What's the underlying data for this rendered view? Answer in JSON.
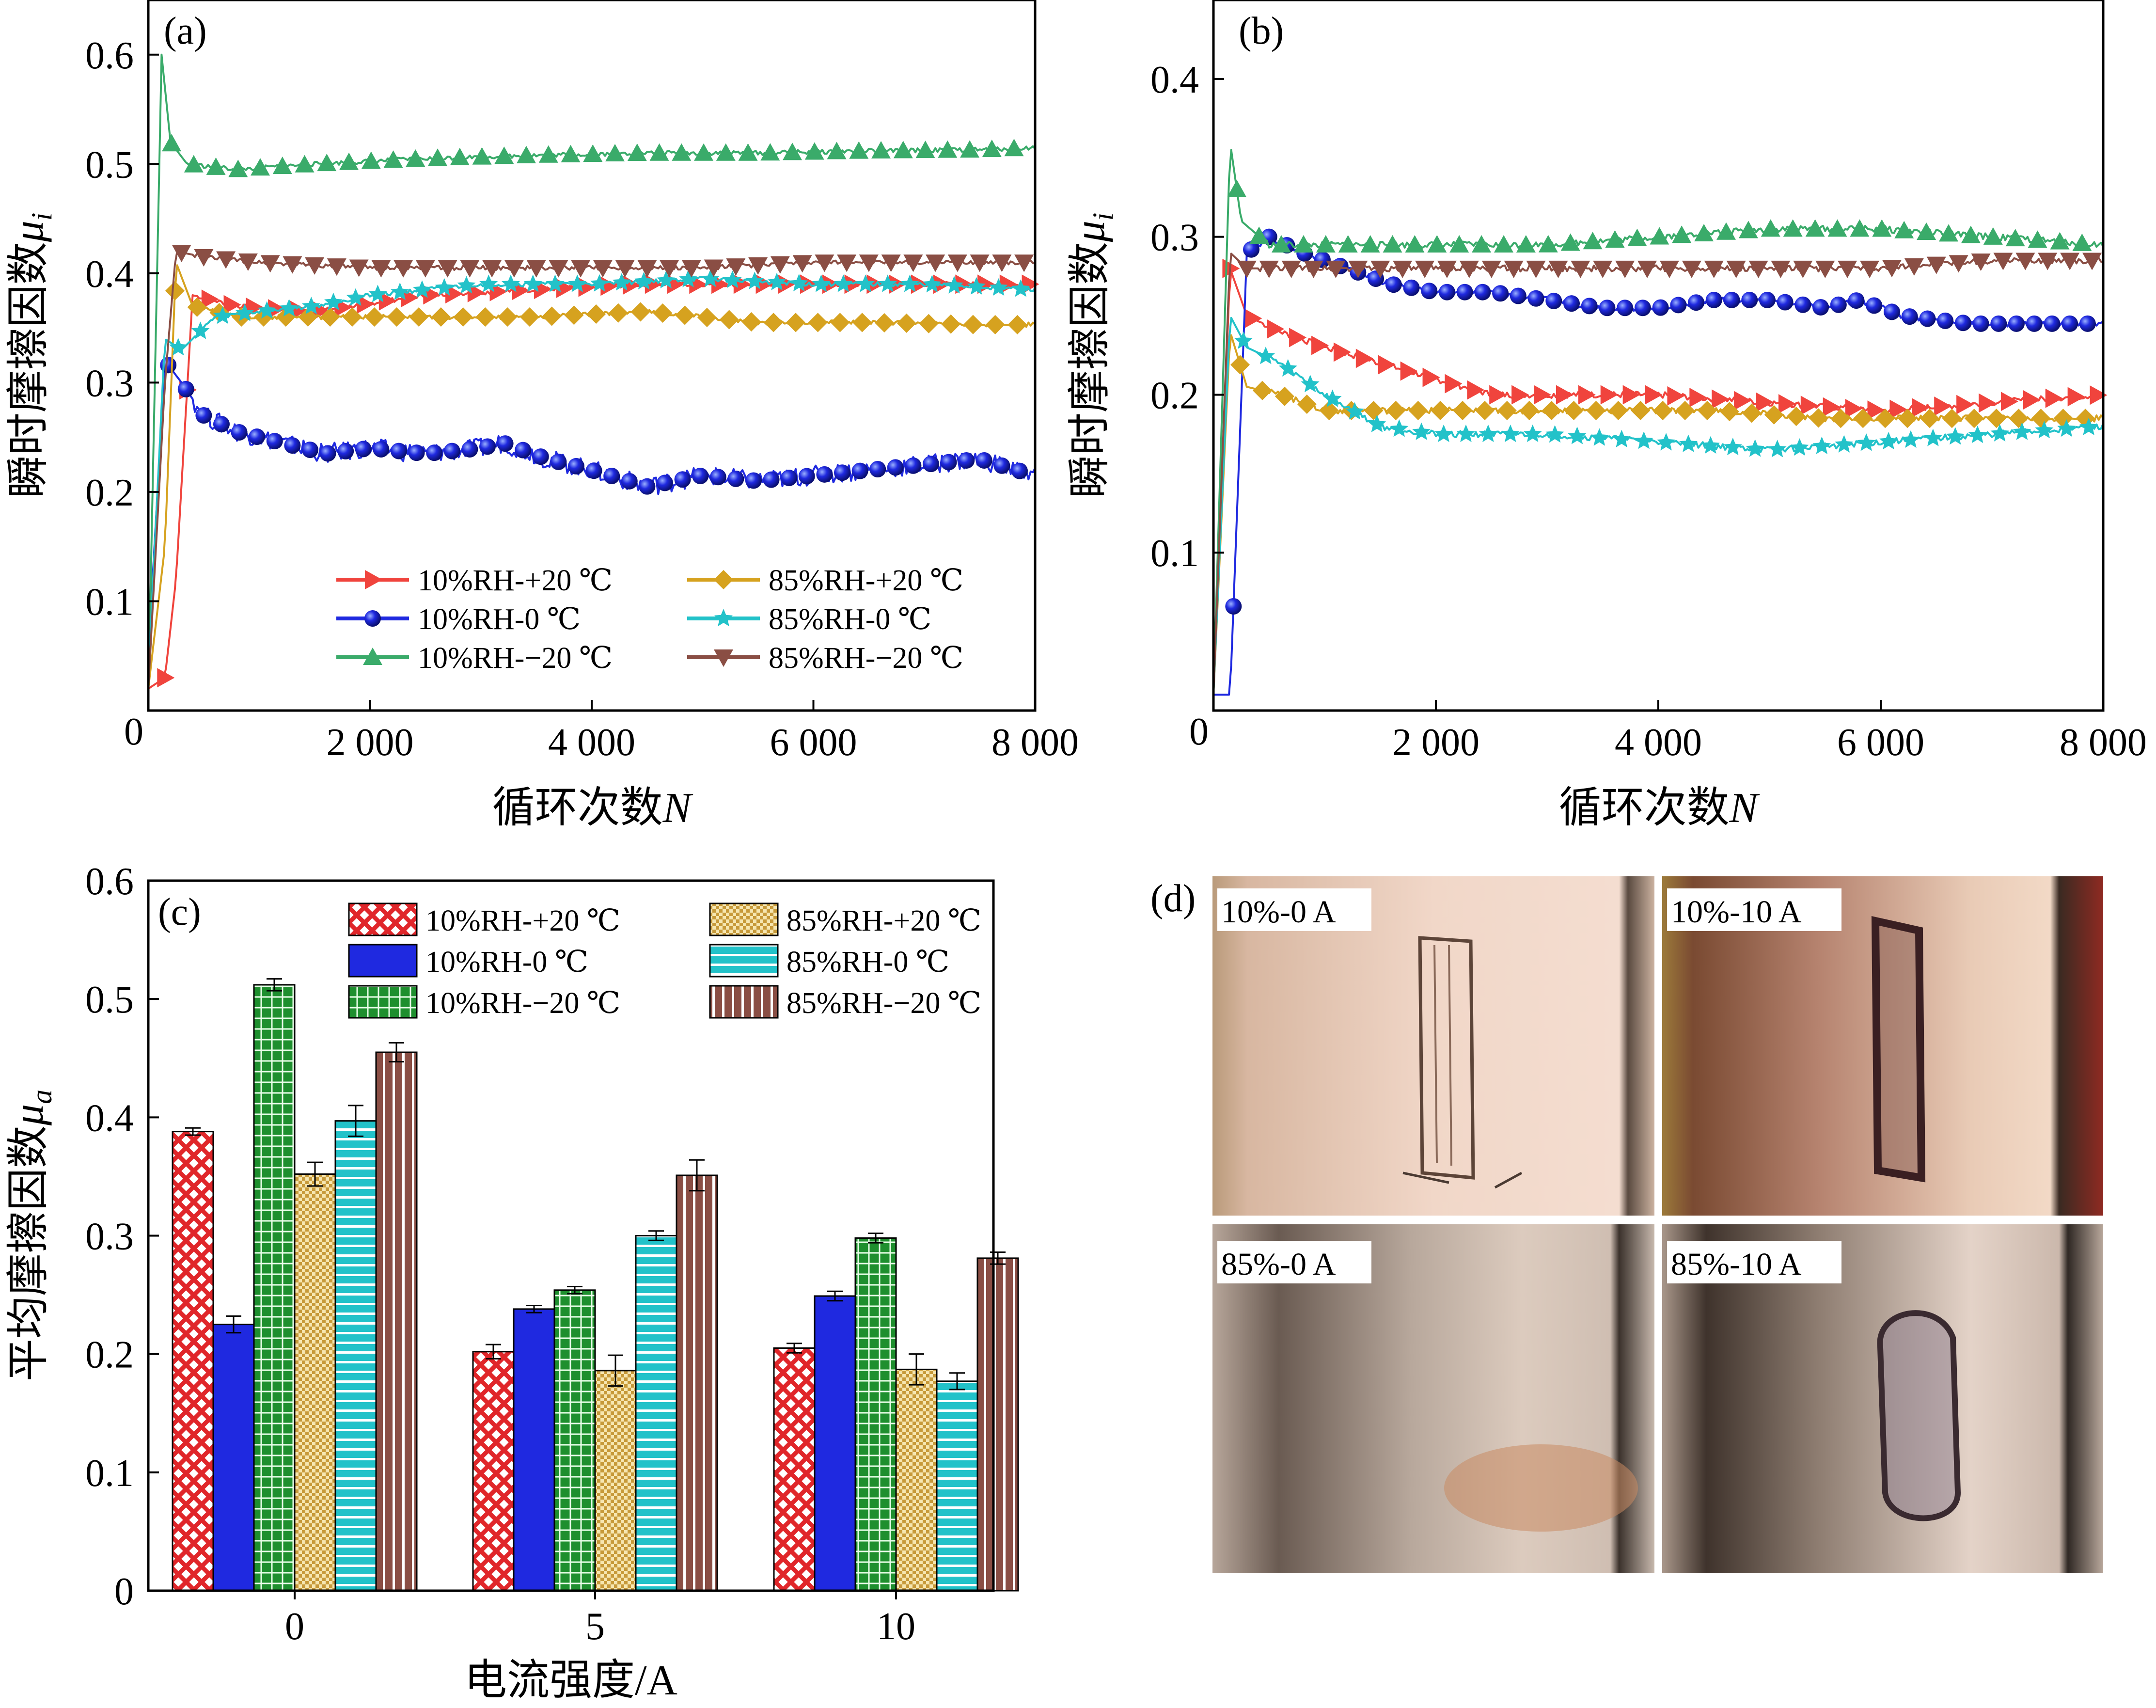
{
  "colors": {
    "red": "#f0443d",
    "blue": "#1f29e0",
    "green": "#3aab6a",
    "gold": "#d6a21f",
    "cyan": "#22c2c9",
    "brown": "#8a4e44",
    "bar_green": "#1e8f2e",
    "bar_gold": "#e8cf7a",
    "bar_cyan": "#22c2c9",
    "bar_brown": "#8a4e44"
  },
  "chart_data": [
    {
      "id": "a",
      "type": "line",
      "panel_label": "(a)",
      "xlabel": "循环次数",
      "xlabel_var": "N",
      "ylabel": "瞬时摩擦因数",
      "ylabel_var": "μ",
      "ylabel_sub": "i",
      "xlim": [
        0,
        8000
      ],
      "ylim": [
        0,
        0.65
      ],
      "xticks": [
        2000,
        4000,
        6000,
        8000
      ],
      "xtick_labels": [
        "2 000",
        "4 000",
        "6 000",
        "8 000"
      ],
      "yticks": [
        0.1,
        0.2,
        0.3,
        0.4,
        0.5,
        0.6
      ],
      "ytick_labels": [
        "0.1",
        "0.2",
        "0.3",
        "0.4",
        "0.5",
        "0.6"
      ],
      "origin_label": "0",
      "legend": [
        "10%RH-+20 ℃",
        "10%RH-0 ℃",
        "10%RH-−20 ℃",
        "85%RH-+20 ℃",
        "85%RH-0 ℃",
        "85%RH-−20 ℃"
      ],
      "series": [
        {
          "name": "10%RH-+20 ℃",
          "color": "red",
          "marker": "tri-right",
          "x": [
            0,
            150,
            250,
            400,
            800,
            1500,
            2500,
            3500,
            4500,
            5500,
            6500,
            7500,
            8000
          ],
          "y": [
            0.02,
            0.03,
            0.12,
            0.38,
            0.37,
            0.365,
            0.38,
            0.385,
            0.39,
            0.39,
            0.39,
            0.39,
            0.39
          ]
        },
        {
          "name": "10%RH-0 ℃",
          "color": "blue",
          "marker": "circle",
          "x": [
            0,
            150,
            300,
            500,
            800,
            1200,
            1600,
            2000,
            2500,
            3000,
            3200,
            3600,
            4000,
            4500,
            5000,
            5500,
            6000,
            6500,
            7000,
            7500,
            8000
          ],
          "y": [
            0.05,
            0.32,
            0.3,
            0.27,
            0.255,
            0.245,
            0.235,
            0.24,
            0.235,
            0.24,
            0.245,
            0.23,
            0.22,
            0.205,
            0.215,
            0.21,
            0.215,
            0.22,
            0.225,
            0.23,
            0.215
          ]
        },
        {
          "name": "10%RH-−20 ℃",
          "color": "green",
          "marker": "tri-up",
          "x": [
            0,
            120,
            200,
            350,
            800,
            1500,
            2500,
            3500,
            4500,
            5500,
            6500,
            7500,
            8000
          ],
          "y": [
            0.01,
            0.6,
            0.52,
            0.5,
            0.495,
            0.5,
            0.505,
            0.508,
            0.51,
            0.51,
            0.512,
            0.513,
            0.515
          ]
        },
        {
          "name": "85%RH-+20 ℃",
          "color": "gold",
          "marker": "diamond",
          "x": [
            0,
            150,
            250,
            400,
            800,
            1500,
            2500,
            3500,
            4500,
            5500,
            6500,
            7500,
            8000
          ],
          "y": [
            0.02,
            0.15,
            0.41,
            0.37,
            0.36,
            0.36,
            0.36,
            0.36,
            0.365,
            0.355,
            0.355,
            0.353,
            0.353
          ]
        },
        {
          "name": "85%RH-0 ℃",
          "color": "cyan",
          "marker": "star",
          "x": [
            0,
            150,
            300,
            600,
            1000,
            1500,
            2000,
            2500,
            3000,
            4000,
            5000,
            6000,
            7000,
            8000
          ],
          "y": [
            0.03,
            0.34,
            0.33,
            0.36,
            0.365,
            0.37,
            0.38,
            0.385,
            0.39,
            0.39,
            0.395,
            0.39,
            0.39,
            0.385
          ]
        },
        {
          "name": "85%RH-−20 ℃",
          "color": "brown",
          "marker": "tri-down",
          "x": [
            0,
            150,
            250,
            500,
            1000,
            2000,
            3000,
            4000,
            5000,
            6000,
            7000,
            8000
          ],
          "y": [
            0.02,
            0.3,
            0.42,
            0.415,
            0.41,
            0.405,
            0.405,
            0.405,
            0.405,
            0.41,
            0.41,
            0.41
          ]
        }
      ]
    },
    {
      "id": "b",
      "type": "line",
      "panel_label": "(b)",
      "xlabel": "循环次数",
      "xlabel_var": "N",
      "ylabel": "瞬时摩擦因数",
      "ylabel_var": "μ",
      "ylabel_sub": "i",
      "xlim": [
        0,
        8000
      ],
      "ylim": [
        0,
        0.45
      ],
      "xticks": [
        2000,
        4000,
        6000,
        8000
      ],
      "xtick_labels": [
        "2 000",
        "4 000",
        "6 000",
        "8 000"
      ],
      "yticks": [
        0.1,
        0.2,
        0.3,
        0.4
      ],
      "ytick_labels": [
        "0.1",
        "0.2",
        "0.3",
        "0.4"
      ],
      "origin_label": "0",
      "series": [
        {
          "name": "10%RH-+20 ℃",
          "color": "red",
          "marker": "tri-right",
          "x": [
            0,
            150,
            300,
            600,
            1000,
            1500,
            2000,
            2500,
            3000,
            4000,
            5000,
            6000,
            7000,
            8000
          ],
          "y": [
            0.01,
            0.28,
            0.25,
            0.24,
            0.23,
            0.22,
            0.21,
            0.2,
            0.2,
            0.2,
            0.195,
            0.19,
            0.195,
            0.2
          ]
        },
        {
          "name": "10%RH-0 ℃",
          "color": "blue",
          "marker": "circle",
          "x": [
            0,
            150,
            300,
            500,
            800,
            1200,
            1600,
            2000,
            2500,
            3000,
            3500,
            4000,
            4500,
            5000,
            5500,
            5800,
            6200,
            6800,
            7500,
            8000
          ],
          "y": [
            0.01,
            0.01,
            0.29,
            0.3,
            0.29,
            0.28,
            0.27,
            0.265,
            0.265,
            0.26,
            0.255,
            0.255,
            0.26,
            0.26,
            0.255,
            0.26,
            0.25,
            0.245,
            0.245,
            0.245
          ]
        },
        {
          "name": "10%RH-−20 ℃",
          "color": "green",
          "marker": "tri-up",
          "x": [
            0,
            150,
            250,
            500,
            1000,
            2000,
            3000,
            4000,
            5000,
            6000,
            7000,
            8000
          ],
          "y": [
            0.01,
            0.36,
            0.31,
            0.295,
            0.295,
            0.295,
            0.295,
            0.3,
            0.305,
            0.305,
            0.3,
            0.295
          ]
        },
        {
          "name": "85%RH-+20 ℃",
          "color": "gold",
          "marker": "diamond",
          "x": [
            0,
            150,
            300,
            600,
            1000,
            1500,
            2500,
            3500,
            4500,
            5500,
            6500,
            7500,
            8000
          ],
          "y": [
            0.01,
            0.24,
            0.205,
            0.2,
            0.19,
            0.19,
            0.19,
            0.19,
            0.19,
            0.185,
            0.185,
            0.185,
            0.185
          ]
        },
        {
          "name": "85%RH-0 ℃",
          "color": "cyan",
          "marker": "star",
          "x": [
            0,
            150,
            300,
            600,
            1000,
            1500,
            2000,
            3000,
            4000,
            5000,
            6000,
            7000,
            8000
          ],
          "y": [
            0.01,
            0.25,
            0.23,
            0.22,
            0.2,
            0.18,
            0.175,
            0.175,
            0.17,
            0.165,
            0.17,
            0.175,
            0.18
          ]
        },
        {
          "name": "85%RH-−20 ℃",
          "color": "brown",
          "marker": "tri-down",
          "x": [
            0,
            150,
            300,
            600,
            1000,
            2000,
            3000,
            4000,
            5000,
            6000,
            7000,
            8000
          ],
          "y": [
            0.01,
            0.29,
            0.28,
            0.28,
            0.28,
            0.28,
            0.28,
            0.28,
            0.28,
            0.28,
            0.285,
            0.285
          ]
        }
      ]
    },
    {
      "id": "c",
      "type": "bar",
      "panel_label": "(c)",
      "xlabel": "电流强度/A",
      "ylabel": "平均摩擦因数",
      "ylabel_var": "μ",
      "ylabel_sub": "a",
      "ylim": [
        0,
        0.6
      ],
      "yticks": [
        0,
        0.1,
        0.2,
        0.3,
        0.4,
        0.5,
        0.6
      ],
      "ytick_labels": [
        "0",
        "0.1",
        "0.2",
        "0.3",
        "0.4",
        "0.5",
        "0.6"
      ],
      "categories": [
        "0",
        "5",
        "10"
      ],
      "legend": [
        "10%RH-+20 ℃",
        "10%RH-0 ℃",
        "10%RH-−20 ℃",
        "85%RH-+20 ℃",
        "85%RH-0 ℃",
        "85%RH-−20 ℃"
      ],
      "series": [
        {
          "name": "10%RH-+20 ℃",
          "fill": "red",
          "pattern": "cross",
          "values": [
            0.388,
            0.202,
            0.205
          ],
          "errors": [
            0.003,
            0.006,
            0.004
          ]
        },
        {
          "name": "10%RH-0 ℃",
          "fill": "blue",
          "pattern": "solid",
          "values": [
            0.225,
            0.238,
            0.249
          ],
          "errors": [
            0.007,
            0.003,
            0.004
          ]
        },
        {
          "name": "10%RH-−20 ℃",
          "fill": "bar_green",
          "pattern": "grid",
          "values": [
            0.512,
            0.254,
            0.298
          ],
          "errors": [
            0.005,
            0.003,
            0.004
          ]
        },
        {
          "name": "85%RH-+20 ℃",
          "fill": "bar_gold",
          "pattern": "check",
          "values": [
            0.352,
            0.186,
            0.187
          ],
          "errors": [
            0.01,
            0.013,
            0.013
          ]
        },
        {
          "name": "85%RH-0 ℃",
          "fill": "bar_cyan",
          "pattern": "hstripe",
          "values": [
            0.397,
            0.3,
            0.177
          ],
          "errors": [
            0.013,
            0.004,
            0.007
          ]
        },
        {
          "name": "85%RH-−20 ℃",
          "fill": "bar_brown",
          "pattern": "vstripe",
          "values": [
            0.455,
            0.351,
            0.281
          ],
          "errors": [
            0.008,
            0.013,
            0.005
          ]
        }
      ]
    }
  ],
  "photos": {
    "panel_label": "(d)",
    "labels": [
      "10%-0 A",
      "10%-10 A",
      "85%-0 A",
      "85%-10 A"
    ]
  }
}
